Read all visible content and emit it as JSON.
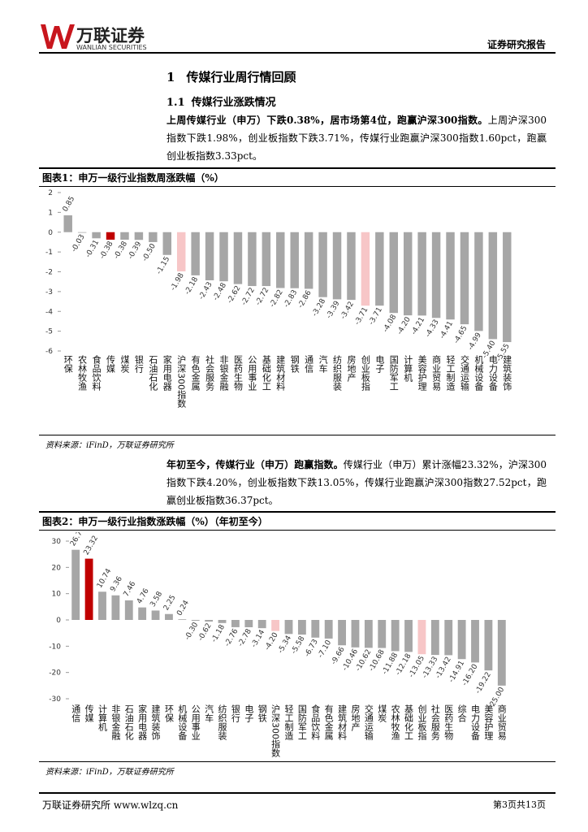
{
  "header": {
    "logo_cn": "万联证券",
    "logo_en": "WANLIAN SECURITIES",
    "report_type": "证券研究报告"
  },
  "section": {
    "number": "1",
    "title": "传媒行业周行情回顾"
  },
  "subsection": {
    "number": "1.1",
    "title": "传媒行业涨跌情况"
  },
  "paragraphs": [
    {
      "bold": "上周传媒行业（申万）下跌0.38%，居市场第4位，跑赢沪深300指数。",
      "text": "上周沪深300指数下跌1.98%，创业板指数下跌3.71%，传媒行业跑赢沪深300指数1.60pct，跑赢创业板指数3.33pct。"
    },
    {
      "bold": "年初至今，传媒行业（申万）跑赢指数。",
      "text": "传媒行业（申万）累计涨幅23.32%，沪深300指数下跌4.20%，创业板指数下跌13.05%，传媒行业跑赢沪深300指数27.52pct，跑赢创业板指数36.37pct。"
    }
  ],
  "figures": [
    {
      "title": "图表1：申万一级行业指数周涨跌幅（%）",
      "source": "资料来源：iFinD，万联证券研究所"
    },
    {
      "title": "图表2：申万一级行业指数涨跌幅（%）（年初至今）",
      "source": "资料来源：iFinD，万联证券研究所"
    }
  ],
  "footer": {
    "left": "万联证券研究所 www.wlzq.cn",
    "right": "第3页共13页"
  },
  "chart_data": [
    {
      "type": "bar",
      "categories": [
        "环保",
        "农林牧渔",
        "食品饮料",
        "传媒",
        "煤炭",
        "银行",
        "石油石化",
        "家用电器",
        "沪深300指数",
        "有色金属",
        "社会服务",
        "非银金融",
        "医药生物",
        "公用事业",
        "基础化工",
        "建筑材料",
        "钢铁",
        "通信",
        "汽车",
        "纺织服装",
        "房地产",
        "创业板指",
        "电子",
        "国防军工",
        "计算机",
        "美容护理",
        "商业贸易",
        "轻工制造",
        "交通运输",
        "机械设备",
        "电力设备",
        "建筑装饰"
      ],
      "values": [
        0.85,
        -0.03,
        -0.31,
        -0.38,
        -0.38,
        -0.39,
        -0.5,
        -1.15,
        -1.98,
        -2.18,
        -2.43,
        -2.48,
        -2.62,
        -2.72,
        -2.72,
        -2.82,
        -2.83,
        -2.86,
        -3.28,
        -3.39,
        -3.42,
        -3.71,
        -3.71,
        -4.08,
        -4.2,
        -4.21,
        -4.33,
        -4.41,
        -4.65,
        -4.99,
        -5.4,
        -5.55
      ],
      "value_labels": [
        "0.85",
        "-0.03",
        "-0.31",
        "-0.38",
        "-0.38",
        "-0.39",
        "-0.50",
        "-1.15",
        "-1.98",
        "-2.18",
        "-2.43",
        "-2.48",
        "-2.62",
        "-2.72",
        "-2.72",
        "-2.82",
        "-2.83",
        "-2.86",
        "-3.28",
        "-3.39",
        "-3.42",
        "-3.71",
        "-3.71",
        "-4.08",
        "-4.20",
        "-4.21",
        "-4.33",
        "-4.41",
        "-4.65",
        "-4.99",
        "-5.40",
        "-5.55"
      ],
      "colors": [
        "#a6a6a6",
        "#a6a6a6",
        "#a6a6a6",
        "#c00000",
        "#a6a6a6",
        "#a6a6a6",
        "#a6a6a6",
        "#a6a6a6",
        "#f7c6c7",
        "#a6a6a6",
        "#a6a6a6",
        "#a6a6a6",
        "#a6a6a6",
        "#a6a6a6",
        "#a6a6a6",
        "#a6a6a6",
        "#a6a6a6",
        "#a6a6a6",
        "#a6a6a6",
        "#a6a6a6",
        "#a6a6a6",
        "#f7c6c7",
        "#a6a6a6",
        "#a6a6a6",
        "#a6a6a6",
        "#a6a6a6",
        "#a6a6a6",
        "#a6a6a6",
        "#a6a6a6",
        "#a6a6a6",
        "#a6a6a6",
        "#a6a6a6"
      ],
      "ylim": [
        -6,
        2
      ],
      "yticks": [
        -6,
        -5,
        -4,
        -3,
        -2,
        -1,
        0,
        1,
        2
      ]
    },
    {
      "type": "bar",
      "categories": [
        "通信",
        "传媒",
        "计算机",
        "非银金融",
        "石油石化",
        "家用电器",
        "建筑装饰",
        "环保",
        "机械设备",
        "公用事业",
        "汽车",
        "纺织服装",
        "银行",
        "电子",
        "钢铁",
        "沪深300指数",
        "轻工制造",
        "国防军工",
        "食品饮料",
        "有色金属",
        "建筑材料",
        "房地产",
        "交通运输",
        "煤炭",
        "农林牧渔",
        "基础化工",
        "创业板指",
        "社会服务",
        "医药生物",
        "综合",
        "电力设备",
        "美容护理",
        "商业贸易"
      ],
      "values": [
        26.7,
        23.32,
        10.74,
        9.36,
        7.46,
        4.76,
        3.58,
        2.25,
        0.24,
        -0.3,
        -0.62,
        -1.18,
        -2.76,
        -2.78,
        -3.14,
        -4.2,
        -5.34,
        -5.58,
        -6.73,
        -7.1,
        -9.66,
        -10.46,
        -10.62,
        -10.68,
        -11.88,
        -12.18,
        -13.05,
        -13.33,
        -13.42,
        -14.91,
        -16.2,
        -19.22,
        -25
      ],
      "value_labels": [
        "26.70",
        "23.32",
        "10.74",
        "9.36",
        "7.46",
        "4.76",
        "3.58",
        "2.25",
        "0.24",
        "-0.30",
        "-0.62",
        "-1.18",
        "-2.76",
        "-2.78",
        "-3.14",
        "-4.20",
        "-5.34",
        "-5.58",
        "-6.73",
        "-7.10",
        "-9.66",
        "-10.46",
        "-10.62",
        "-10.68",
        "-11.88",
        "-12.18",
        "-13.05",
        "-13.33",
        "-13.42",
        "-14.91",
        "-16.20",
        "-19.22",
        "-25.00"
      ],
      "colors": [
        "#a6a6a6",
        "#c00000",
        "#a6a6a6",
        "#a6a6a6",
        "#a6a6a6",
        "#a6a6a6",
        "#a6a6a6",
        "#a6a6a6",
        "#a6a6a6",
        "#a6a6a6",
        "#a6a6a6",
        "#a6a6a6",
        "#a6a6a6",
        "#a6a6a6",
        "#a6a6a6",
        "#f7c6c7",
        "#a6a6a6",
        "#a6a6a6",
        "#a6a6a6",
        "#a6a6a6",
        "#a6a6a6",
        "#a6a6a6",
        "#a6a6a6",
        "#a6a6a6",
        "#a6a6a6",
        "#a6a6a6",
        "#f7c6c7",
        "#a6a6a6",
        "#a6a6a6",
        "#a6a6a6",
        "#a6a6a6",
        "#a6a6a6",
        "#a6a6a6"
      ],
      "ylim": [
        -30,
        30
      ],
      "yticks": [
        -30,
        -20,
        -10,
        0,
        10,
        20,
        30
      ]
    }
  ]
}
